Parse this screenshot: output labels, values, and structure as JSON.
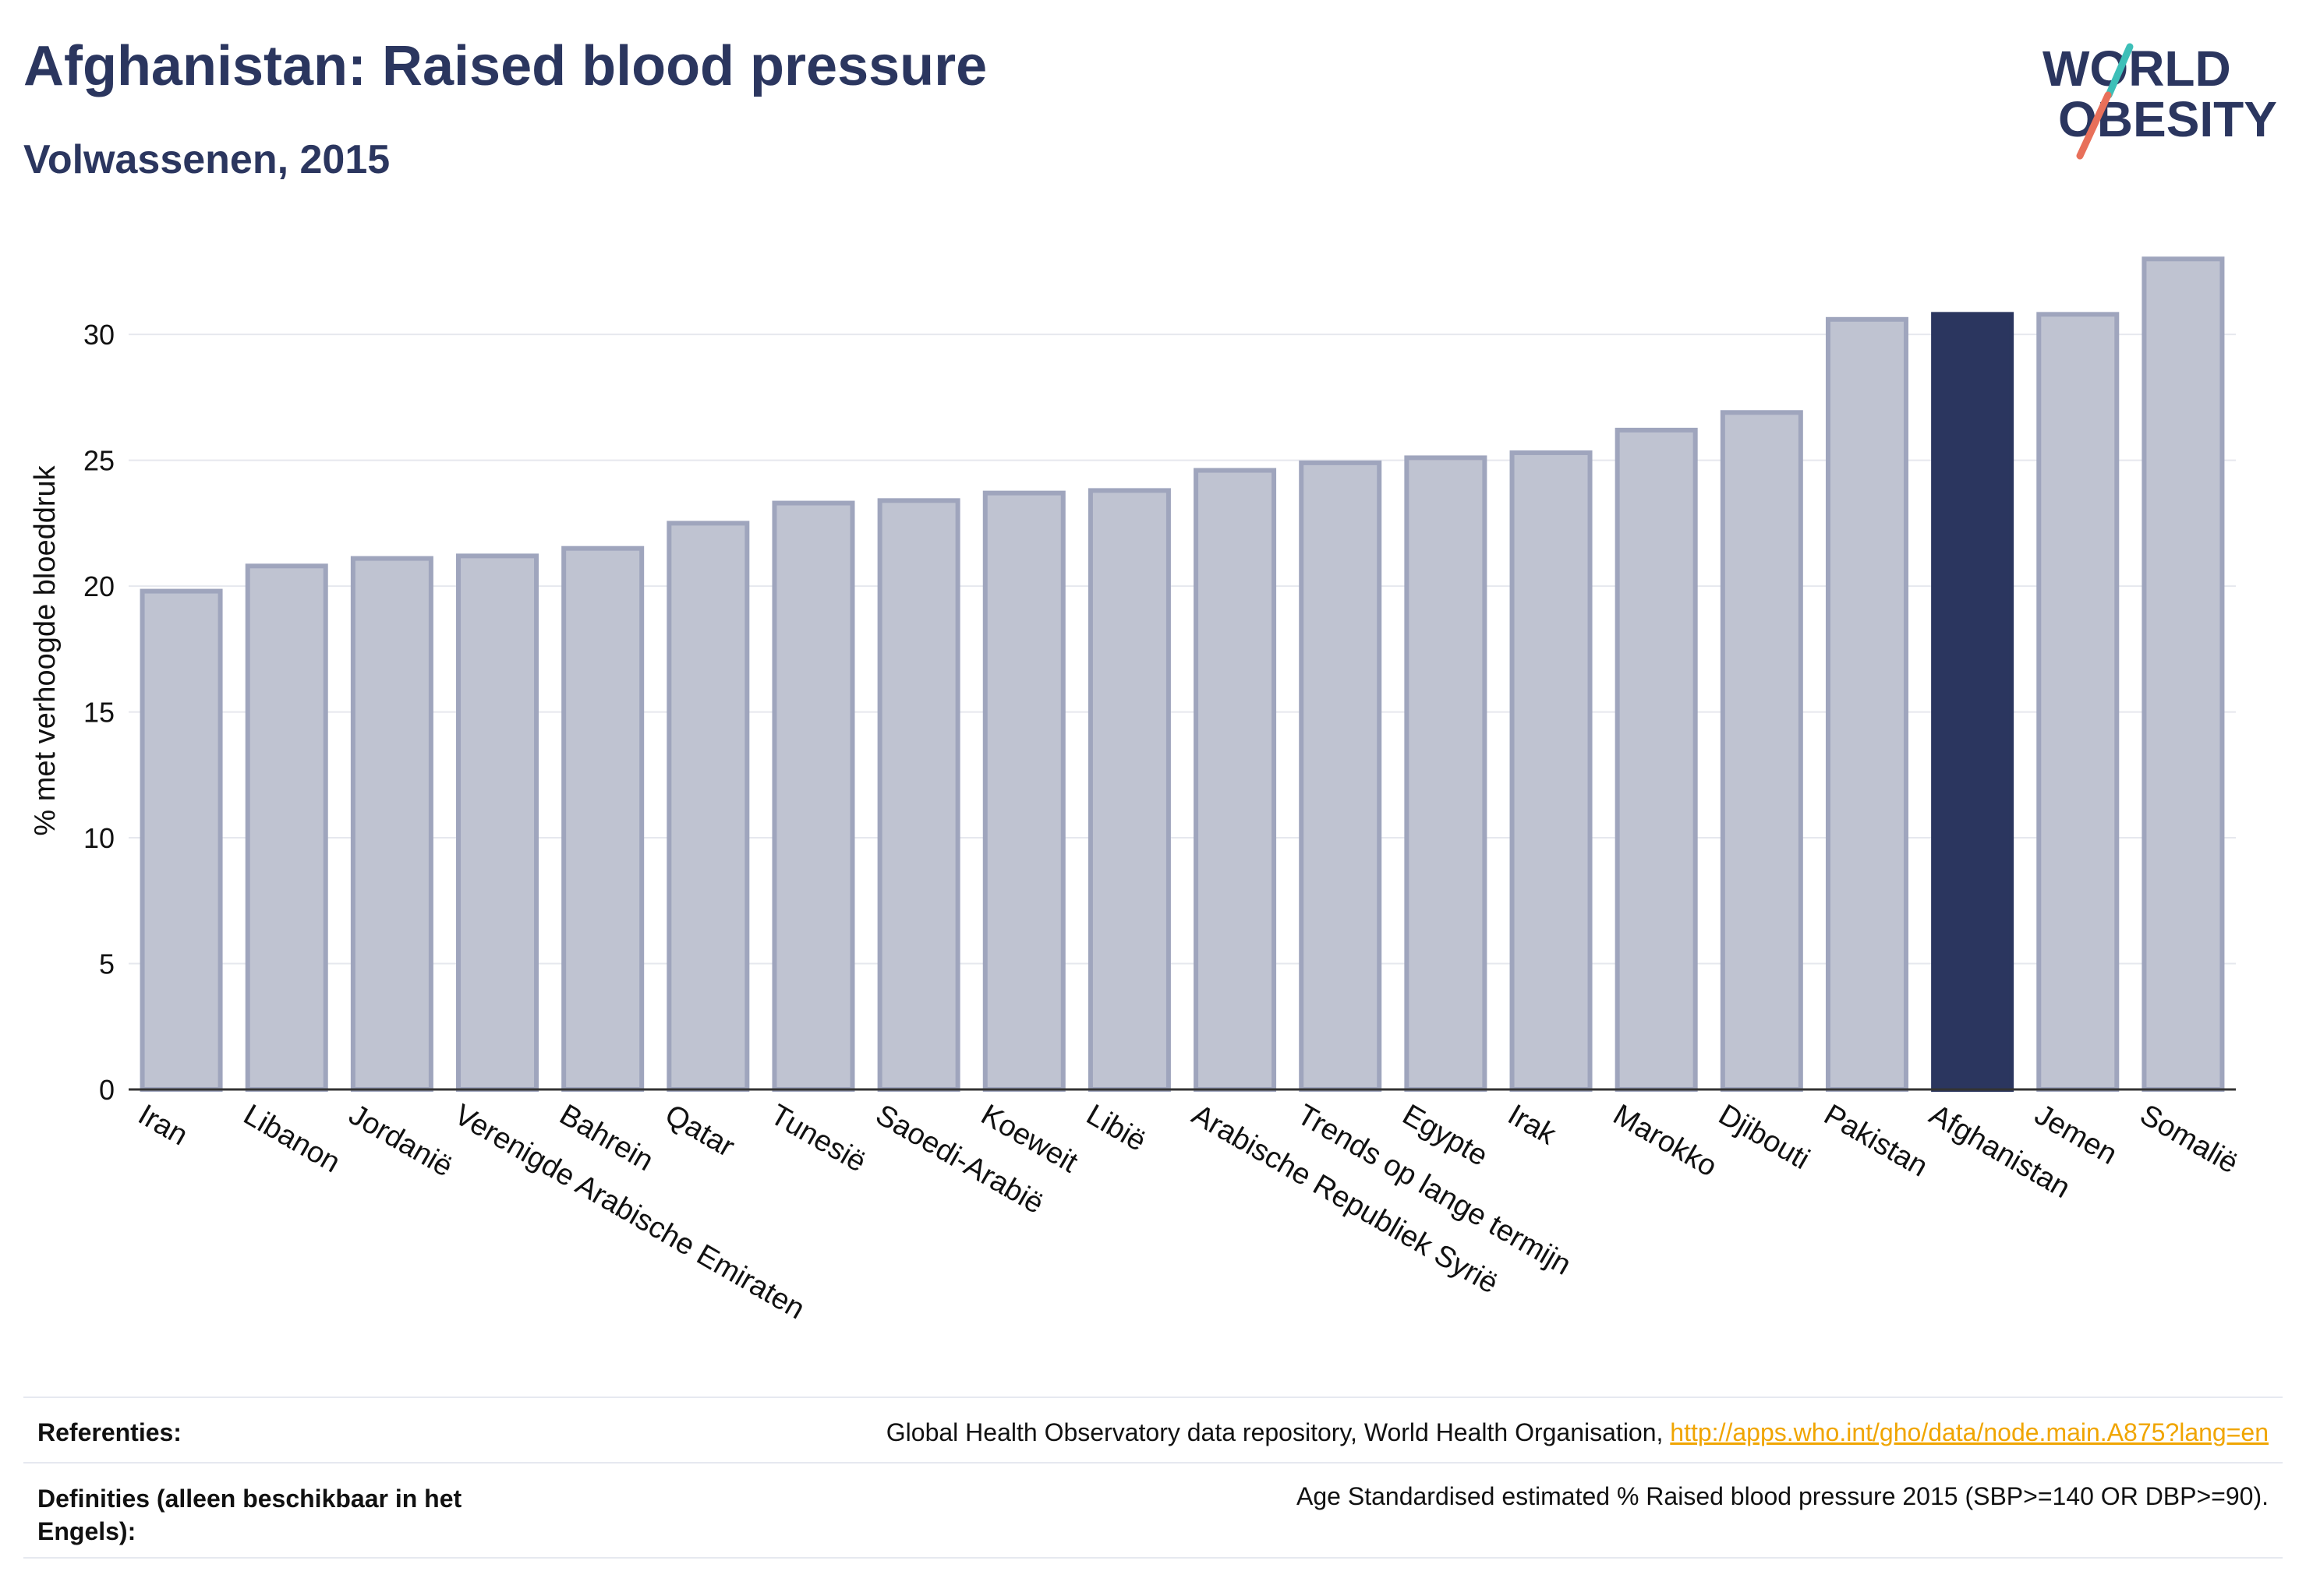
{
  "header": {
    "title": "Afghanistan: Raised blood pressure",
    "subtitle": "Volwassenen, 2015"
  },
  "logo": {
    "line1": "WORLD",
    "line2": "OBESITY",
    "accent_teal": "#3dbfb8",
    "accent_coral": "#e8705a"
  },
  "colors": {
    "text": "#2b365f",
    "bar_default": "#bfc3d1",
    "bar_border": "#9fa5bd",
    "bar_highlight": "#2b365f",
    "link": "#f0a500"
  },
  "chart_data": {
    "type": "bar",
    "categories": [
      "Iran",
      "Libanon",
      "Jordanië",
      "Verenigde Arabische Emiraten",
      "Bahrein",
      "Qatar",
      "Tunesië",
      "Saoedi-Arabië",
      "Koeweit",
      "Libië",
      "Arabische Republiek Syrië",
      "Trends op lange termijn",
      "Egypte",
      "Irak",
      "Marokko",
      "Djibouti",
      "Pakistan",
      "Afghanistan",
      "Jemen",
      "Somalië"
    ],
    "values": [
      19.8,
      20.8,
      21.1,
      21.2,
      21.5,
      22.5,
      23.3,
      23.4,
      23.7,
      23.8,
      24.6,
      24.9,
      25.1,
      25.3,
      26.2,
      26.9,
      30.6,
      30.8,
      30.8,
      33.0
    ],
    "highlight": "Afghanistan",
    "ylabel": "% met verhoogde bloeddruk",
    "xlabel": "",
    "ylim": [
      0,
      34
    ],
    "yticks": [
      0,
      5,
      10,
      15,
      20,
      25,
      30
    ],
    "grid": true
  },
  "footer": {
    "references_label": "Referenties:",
    "references_text": "Global Health Observatory data repository, World Health Organisation, ",
    "references_link": "http://apps.who.int/gho/data/node.main.A875?lang=en",
    "definitions_label": "Definities (alleen beschikbaar in het Engels):",
    "definitions_text": "Age Standardised estimated % Raised blood pressure 2015 (SBP>=140 OR DBP>=90)."
  }
}
